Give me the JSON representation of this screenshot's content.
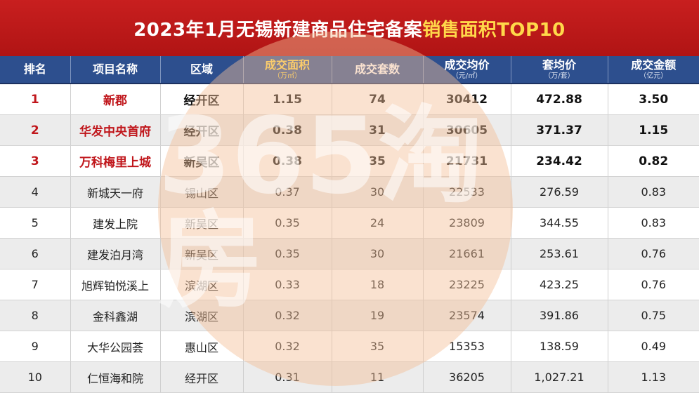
{
  "title": {
    "prefix": "2023年1月无锡新建商品住宅备案",
    "highlight": "销售面积TOP10"
  },
  "watermark": {
    "text": "365淘房"
  },
  "colors": {
    "title_bg": "#c81f1f",
    "header_bg": "#2d4f8e",
    "highlight": "#ffd84a",
    "top_rank": "#c0161b"
  },
  "headers": {
    "rank": "排名",
    "name": "项目名称",
    "district": "区域",
    "area": "成交面积",
    "area_unit": "（万㎡）",
    "units": "成交套数",
    "avg_price": "成交均价",
    "avg_price_unit": "（元/㎡）",
    "unit_price": "套均价",
    "unit_price_unit": "（万/套）",
    "amount": "成交金额",
    "amount_unit": "（亿元）"
  },
  "rows": [
    {
      "rank": "1",
      "name": "新郡",
      "district": "经开区",
      "area": "1.15",
      "units": "74",
      "avg_price": "30412",
      "unit_price": "472.88",
      "amount": "3.50"
    },
    {
      "rank": "2",
      "name": "华发中央首府",
      "district": "经开区",
      "area": "0.38",
      "units": "31",
      "avg_price": "30605",
      "unit_price": "371.37",
      "amount": "1.15"
    },
    {
      "rank": "3",
      "name": "万科梅里上城",
      "district": "新吴区",
      "area": "0.38",
      "units": "35",
      "avg_price": "21731",
      "unit_price": "234.42",
      "amount": "0.82"
    },
    {
      "rank": "4",
      "name": "新城天一府",
      "district": "锡山区",
      "area": "0.37",
      "units": "30",
      "avg_price": "22533",
      "unit_price": "276.59",
      "amount": "0.83"
    },
    {
      "rank": "5",
      "name": "建发上院",
      "district": "新吴区",
      "area": "0.35",
      "units": "24",
      "avg_price": "23809",
      "unit_price": "344.55",
      "amount": "0.83"
    },
    {
      "rank": "6",
      "name": "建发泊月湾",
      "district": "新吴区",
      "area": "0.35",
      "units": "30",
      "avg_price": "21661",
      "unit_price": "253.61",
      "amount": "0.76"
    },
    {
      "rank": "7",
      "name": "旭辉铂悦溪上",
      "district": "滨湖区",
      "area": "0.33",
      "units": "18",
      "avg_price": "23225",
      "unit_price": "423.25",
      "amount": "0.76"
    },
    {
      "rank": "8",
      "name": "金科鑫湖",
      "district": "滨湖区",
      "area": "0.32",
      "units": "19",
      "avg_price": "23574",
      "unit_price": "391.86",
      "amount": "0.75"
    },
    {
      "rank": "9",
      "name": "大华公园荟",
      "district": "惠山区",
      "area": "0.32",
      "units": "35",
      "avg_price": "15353",
      "unit_price": "138.59",
      "amount": "0.49"
    },
    {
      "rank": "10",
      "name": "仁恒海和院",
      "district": "经开区",
      "area": "0.31",
      "units": "11",
      "avg_price": "36205",
      "unit_price": "1,027.21",
      "amount": "1.13"
    }
  ]
}
